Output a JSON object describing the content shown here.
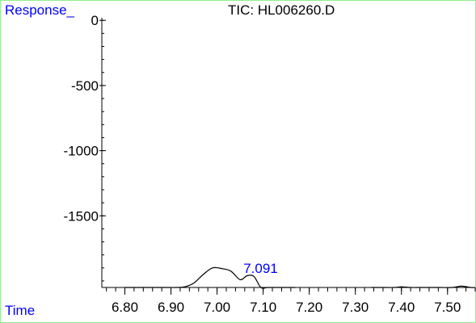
{
  "colors": {
    "frame": "#90ee90",
    "label": "#0000ff",
    "trace": "#000000",
    "peak_label": "#0000ff"
  },
  "chart_data": {
    "type": "line",
    "title": "TIC: HL006260.D",
    "ylabel": "Response_",
    "xlabel": "Time",
    "xlim": [
      6.75,
      7.56
    ],
    "ylim": [
      -2050,
      20
    ],
    "xticks": [
      "6.80",
      "6.90",
      "7.00",
      "7.10",
      "7.20",
      "7.30",
      "7.40",
      "7.50"
    ],
    "yticks": [
      "0",
      "-500",
      "-1000",
      "-1500"
    ],
    "peak_label": {
      "text": "7.091",
      "x": 7.091,
      "y": -1950
    },
    "series": [
      {
        "x": [
          6.8,
          6.82,
          6.84,
          6.86,
          6.87,
          6.89,
          6.91,
          6.93,
          6.95,
          6.97,
          6.99,
          7.01,
          7.03,
          7.05,
          7.065,
          7.08,
          7.095,
          7.11,
          7.13,
          7.15,
          7.17
        ],
        "y": [
          -2240,
          -2160,
          -2070,
          -2120,
          -2105,
          -2120,
          -2090,
          -2045,
          -2015,
          -1950,
          -1900,
          -1905,
          -1925,
          -1990,
          -1960,
          -1965,
          -2065,
          -2225,
          -2240,
          -2245,
          -2245
        ]
      },
      {
        "x": [
          7.335,
          7.36,
          7.385,
          7.4,
          7.42,
          7.44,
          7.46,
          7.485,
          7.51,
          7.53,
          7.55,
          7.57
        ],
        "y": [
          -2245,
          -2190,
          -2130,
          -2045,
          -2080,
          -2055,
          -2100,
          -2160,
          -2065,
          -2040,
          -2070,
          -2090
        ]
      }
    ]
  }
}
